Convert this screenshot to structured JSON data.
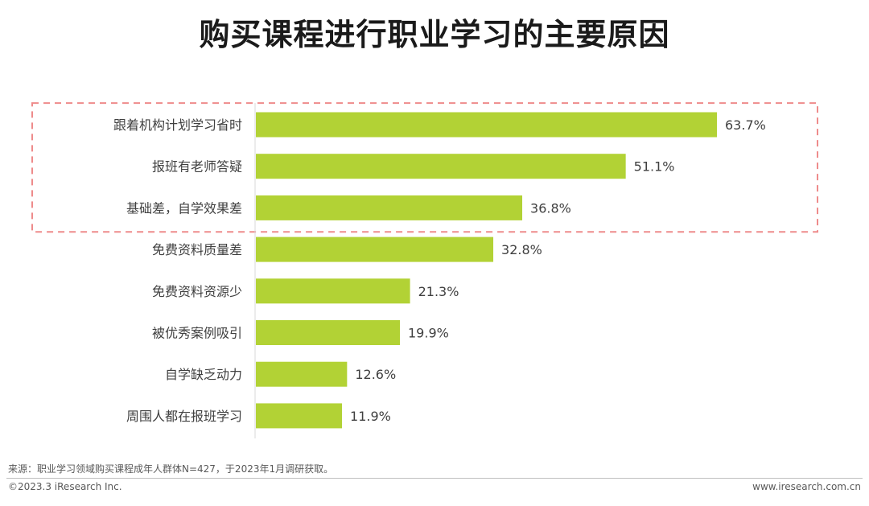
{
  "chart_data": {
    "type": "bar",
    "orientation": "horizontal",
    "title": "购买课程进行职业学习的主要原因",
    "categories": [
      "跟着机构计划学习省时",
      "报班有老师答疑",
      "基础差，自学效果差",
      "免费资料质量差",
      "免费资料资源少",
      "被优秀案例吸引",
      "自学缺乏动力",
      "周围人都在报班学习"
    ],
    "values": [
      63.7,
      51.1,
      36.8,
      32.8,
      21.3,
      19.9,
      12.6,
      11.9
    ],
    "value_labels": [
      "63.7%",
      "51.1%",
      "36.8%",
      "32.8%",
      "21.3%",
      "19.9%",
      "12.6%",
      "11.9%"
    ],
    "unit": "%",
    "xlim": [
      0,
      65
    ],
    "highlight": {
      "categories": [
        "跟着机构计划学习省时",
        "报班有老师答疑",
        "基础差，自学效果差"
      ],
      "style": "dashed-box"
    },
    "colors": {
      "bar": "#b2d235",
      "highlight_box": "#ee8b8b",
      "axis": "#d9d9d9"
    }
  },
  "source_note": "来源：职业学习领域购买课程成年人群体N=427，于2023年1月调研获取。",
  "footer": {
    "copyright": "©2023.3 iResearch Inc.",
    "website": "www.iresearch.com.cn"
  }
}
